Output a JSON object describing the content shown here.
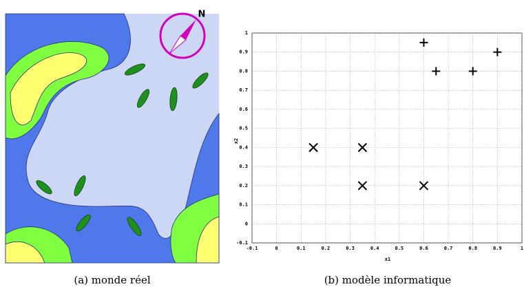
{
  "map": {
    "compass_label": "N",
    "caption": "(a) monde réel"
  },
  "chart_data": {
    "type": "scatter",
    "caption": "(b) modèle informatique",
    "xlabel": "x1",
    "ylabel": "x2",
    "xlim": [
      -0.1,
      1
    ],
    "ylim": [
      -0.1,
      1
    ],
    "xticks": [
      -0.1,
      0,
      0.1,
      0.2,
      0.3,
      0.4,
      0.5,
      0.6,
      0.7,
      0.8,
      0.9,
      1
    ],
    "yticks": [
      -0.1,
      0,
      0.1,
      0.2,
      0.3,
      0.4,
      0.5,
      0.6,
      0.7,
      0.8,
      0.9,
      1
    ],
    "grid": true,
    "series": [
      {
        "marker": "x",
        "color": "#000000",
        "x": [
          0.15,
          0.35,
          0.35,
          0.6
        ],
        "values": [
          0.4,
          0.4,
          0.2,
          0.2
        ]
      },
      {
        "marker": "+",
        "color": "#000000",
        "x": [
          0.6,
          0.65,
          0.8,
          0.9
        ],
        "values": [
          0.95,
          0.8,
          0.8,
          0.9
        ]
      }
    ]
  }
}
